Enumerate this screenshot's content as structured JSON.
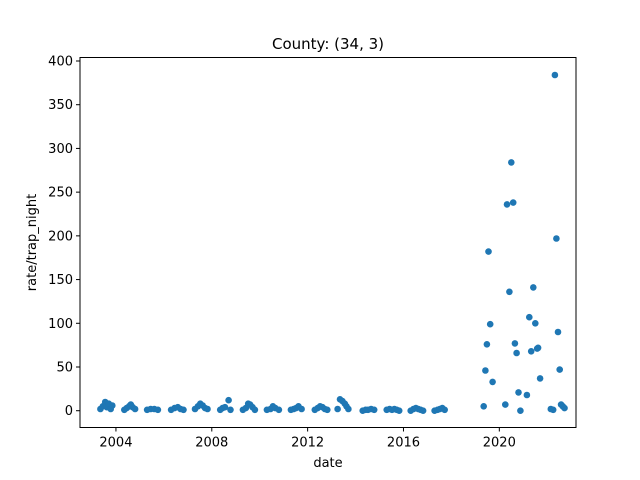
{
  "chart_data": {
    "type": "scatter",
    "title": "County: (34, 3)",
    "xlabel": "date",
    "ylabel": "rate/trap_night",
    "xlim": [
      2002.5,
      2023.2
    ],
    "ylim": [
      -19.2,
      404
    ],
    "xticks": [
      2004,
      2008,
      2012,
      2016,
      2020
    ],
    "yticks": [
      0,
      50,
      100,
      150,
      200,
      250,
      300,
      350,
      400
    ],
    "grid": false,
    "color": "#1f77b4",
    "series": [
      {
        "name": "rate/trap_night",
        "points": [
          {
            "x": 2003.35,
            "y": 2
          },
          {
            "x": 2003.45,
            "y": 5
          },
          {
            "x": 2003.55,
            "y": 10
          },
          {
            "x": 2003.62,
            "y": 4
          },
          {
            "x": 2003.7,
            "y": 8
          },
          {
            "x": 2003.78,
            "y": 2
          },
          {
            "x": 2003.85,
            "y": 6
          },
          {
            "x": 2004.35,
            "y": 1
          },
          {
            "x": 2004.45,
            "y": 3
          },
          {
            "x": 2004.55,
            "y": 5
          },
          {
            "x": 2004.62,
            "y": 7
          },
          {
            "x": 2004.7,
            "y": 4
          },
          {
            "x": 2004.8,
            "y": 2
          },
          {
            "x": 2005.3,
            "y": 1
          },
          {
            "x": 2005.45,
            "y": 2
          },
          {
            "x": 2005.6,
            "y": 2
          },
          {
            "x": 2005.75,
            "y": 1
          },
          {
            "x": 2006.3,
            "y": 1
          },
          {
            "x": 2006.45,
            "y": 3
          },
          {
            "x": 2006.58,
            "y": 4
          },
          {
            "x": 2006.7,
            "y": 2
          },
          {
            "x": 2006.82,
            "y": 1
          },
          {
            "x": 2007.3,
            "y": 2
          },
          {
            "x": 2007.42,
            "y": 5
          },
          {
            "x": 2007.52,
            "y": 8
          },
          {
            "x": 2007.62,
            "y": 6
          },
          {
            "x": 2007.72,
            "y": 3
          },
          {
            "x": 2007.82,
            "y": 2
          },
          {
            "x": 2008.35,
            "y": 1
          },
          {
            "x": 2008.45,
            "y": 3
          },
          {
            "x": 2008.55,
            "y": 4
          },
          {
            "x": 2008.7,
            "y": 12
          },
          {
            "x": 2008.78,
            "y": 1
          },
          {
            "x": 2009.3,
            "y": 1
          },
          {
            "x": 2009.42,
            "y": 3
          },
          {
            "x": 2009.52,
            "y": 8
          },
          {
            "x": 2009.6,
            "y": 7
          },
          {
            "x": 2009.7,
            "y": 4
          },
          {
            "x": 2009.8,
            "y": 1
          },
          {
            "x": 2010.3,
            "y": 1
          },
          {
            "x": 2010.45,
            "y": 2
          },
          {
            "x": 2010.55,
            "y": 5
          },
          {
            "x": 2010.65,
            "y": 3
          },
          {
            "x": 2010.8,
            "y": 1
          },
          {
            "x": 2011.3,
            "y": 1
          },
          {
            "x": 2011.42,
            "y": 2
          },
          {
            "x": 2011.52,
            "y": 3
          },
          {
            "x": 2011.62,
            "y": 5
          },
          {
            "x": 2011.75,
            "y": 2
          },
          {
            "x": 2012.3,
            "y": 1
          },
          {
            "x": 2012.42,
            "y": 3
          },
          {
            "x": 2012.52,
            "y": 5
          },
          {
            "x": 2012.62,
            "y": 4
          },
          {
            "x": 2012.72,
            "y": 2
          },
          {
            "x": 2012.82,
            "y": 1
          },
          {
            "x": 2013.25,
            "y": 2
          },
          {
            "x": 2013.35,
            "y": 13
          },
          {
            "x": 2013.45,
            "y": 11
          },
          {
            "x": 2013.55,
            "y": 8
          },
          {
            "x": 2013.62,
            "y": 5
          },
          {
            "x": 2013.7,
            "y": 2
          },
          {
            "x": 2014.3,
            "y": 0
          },
          {
            "x": 2014.42,
            "y": 1
          },
          {
            "x": 2014.52,
            "y": 1
          },
          {
            "x": 2014.65,
            "y": 2
          },
          {
            "x": 2014.78,
            "y": 1
          },
          {
            "x": 2015.3,
            "y": 1
          },
          {
            "x": 2015.42,
            "y": 2
          },
          {
            "x": 2015.52,
            "y": 1
          },
          {
            "x": 2015.62,
            "y": 2
          },
          {
            "x": 2015.72,
            "y": 1
          },
          {
            "x": 2015.82,
            "y": 0
          },
          {
            "x": 2016.3,
            "y": 0
          },
          {
            "x": 2016.42,
            "y": 2
          },
          {
            "x": 2016.52,
            "y": 3
          },
          {
            "x": 2016.62,
            "y": 2
          },
          {
            "x": 2016.72,
            "y": 1
          },
          {
            "x": 2016.82,
            "y": 0
          },
          {
            "x": 2017.3,
            "y": 0
          },
          {
            "x": 2017.42,
            "y": 1
          },
          {
            "x": 2017.52,
            "y": 2
          },
          {
            "x": 2017.62,
            "y": 3
          },
          {
            "x": 2017.72,
            "y": 1
          },
          {
            "x": 2019.35,
            "y": 5
          },
          {
            "x": 2019.42,
            "y": 46
          },
          {
            "x": 2019.48,
            "y": 76
          },
          {
            "x": 2019.55,
            "y": 182
          },
          {
            "x": 2019.62,
            "y": 99
          },
          {
            "x": 2019.72,
            "y": 33
          },
          {
            "x": 2020.25,
            "y": 7
          },
          {
            "x": 2020.32,
            "y": 236
          },
          {
            "x": 2020.42,
            "y": 136
          },
          {
            "x": 2020.5,
            "y": 284
          },
          {
            "x": 2020.58,
            "y": 238
          },
          {
            "x": 2020.65,
            "y": 77
          },
          {
            "x": 2020.72,
            "y": 66
          },
          {
            "x": 2020.8,
            "y": 21
          },
          {
            "x": 2020.88,
            "y": 0
          },
          {
            "x": 2021.15,
            "y": 18
          },
          {
            "x": 2021.25,
            "y": 107
          },
          {
            "x": 2021.33,
            "y": 68
          },
          {
            "x": 2021.42,
            "y": 141
          },
          {
            "x": 2021.5,
            "y": 100
          },
          {
            "x": 2021.58,
            "y": 71
          },
          {
            "x": 2021.62,
            "y": 72
          },
          {
            "x": 2021.7,
            "y": 37
          },
          {
            "x": 2022.15,
            "y": 2
          },
          {
            "x": 2022.25,
            "y": 1
          },
          {
            "x": 2022.32,
            "y": 384
          },
          {
            "x": 2022.38,
            "y": 197
          },
          {
            "x": 2022.45,
            "y": 90
          },
          {
            "x": 2022.52,
            "y": 47
          },
          {
            "x": 2022.58,
            "y": 7
          },
          {
            "x": 2022.65,
            "y": 5
          },
          {
            "x": 2022.72,
            "y": 3
          }
        ]
      }
    ]
  }
}
